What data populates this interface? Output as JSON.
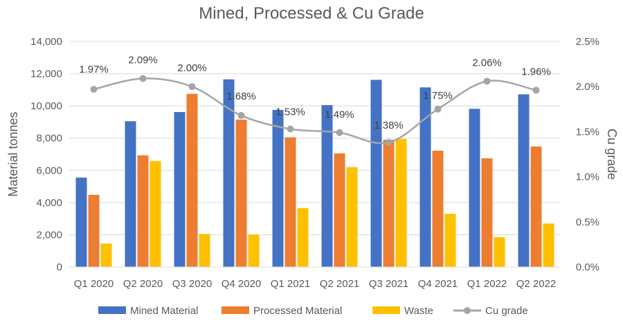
{
  "chart_data": {
    "type": "bar",
    "title": "Mined, Processed & Cu Grade",
    "ylabel": "Material tonnes",
    "y2label": "Cu grade",
    "ylim": [
      0,
      14000
    ],
    "y2lim": [
      0,
      2.5
    ],
    "yticks": [
      "0",
      "2,000",
      "4,000",
      "6,000",
      "8,000",
      "10,000",
      "12,000",
      "14,000"
    ],
    "y2ticks": [
      "0.0%",
      "0.5%",
      "1.0%",
      "1.5%",
      "2.0%",
      "2.5%"
    ],
    "categories": [
      "Q1 2020",
      "Q2 2020",
      "Q3 2020",
      "Q4 2020",
      "Q1 2021",
      "Q2 2021",
      "Q3 2021",
      "Q4 2021",
      "Q1 2022",
      "Q2 2022"
    ],
    "series": [
      {
        "name": "Mined Material",
        "color": "#4472C4",
        "values": [
          5550,
          9050,
          9620,
          11650,
          9750,
          10050,
          11620,
          11150,
          9820,
          10720
        ]
      },
      {
        "name": "Processed Material",
        "color": "#ED7D31",
        "values": [
          4480,
          6930,
          10750,
          9150,
          8050,
          7050,
          7900,
          7220,
          6750,
          7480
        ]
      },
      {
        "name": "Waste",
        "color": "#FFC000",
        "values": [
          1450,
          6580,
          2050,
          2020,
          3650,
          6200,
          7950,
          3300,
          1850,
          2700
        ]
      }
    ],
    "line": {
      "name": "Cu grade",
      "color": "#A5A5A5",
      "values": [
        1.97,
        2.09,
        2.0,
        1.68,
        1.53,
        1.49,
        1.38,
        1.75,
        2.06,
        1.96
      ],
      "labels": [
        "1.97%",
        "2.09%",
        "2.00%",
        "1.68%",
        "1.53%",
        "1.49%",
        "1.38%",
        "1.75%",
        "2.06%",
        "1.96%"
      ]
    },
    "legend": {
      "position": "bottom",
      "entries": [
        "Mined Material",
        "Processed Material",
        "Waste",
        "Cu grade"
      ]
    }
  }
}
